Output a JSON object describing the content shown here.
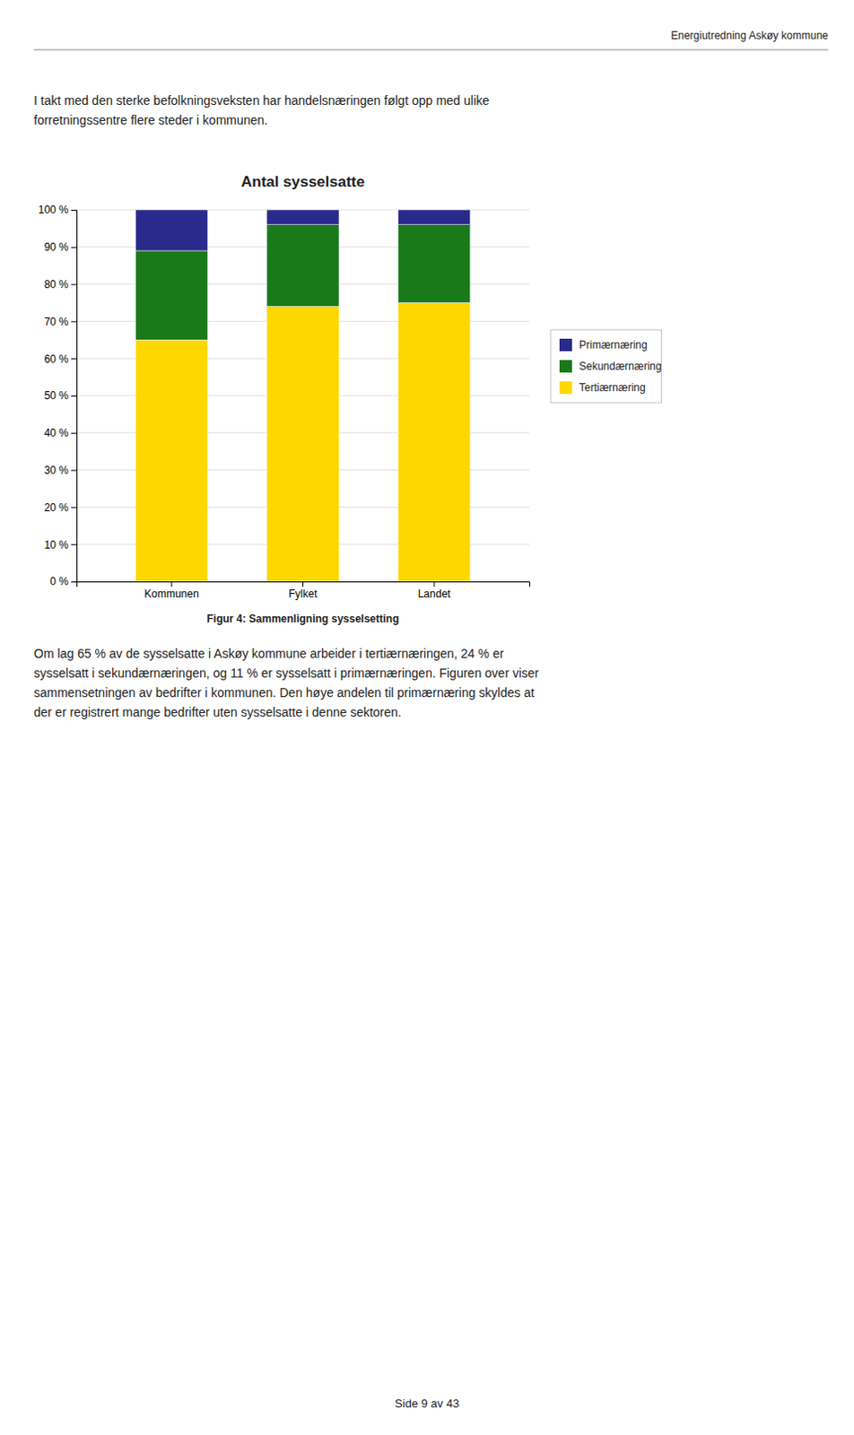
{
  "header": "Energiutredning Askøy kommune",
  "intro_text": "I takt med den sterke befolkningsveksten har handelsnæringen følgt opp med ulike\nforretningssentre flere steder i kommunen.",
  "chart_data": {
    "type": "bar",
    "title": "Antal sysselsatte",
    "categories": [
      "Kommunen",
      "Fylket",
      "Landet"
    ],
    "series": [
      {
        "name": "Tertiærnæring",
        "color": "#FFD700",
        "values": [
          65,
          74,
          75
        ]
      },
      {
        "name": "Sekundærnæring",
        "color": "#1a7a1a",
        "values": [
          24,
          22,
          21
        ]
      },
      {
        "name": "Primærnæring",
        "color": "#2a2a8c",
        "values": [
          11,
          4,
          4
        ]
      }
    ],
    "stacked": true,
    "ylim": [
      0,
      100
    ],
    "yticks": [
      {
        "value": 0,
        "label": "0 %"
      },
      {
        "value": 10,
        "label": "10 %"
      },
      {
        "value": 20,
        "label": "20 %"
      },
      {
        "value": 30,
        "label": "30 %"
      },
      {
        "value": 40,
        "label": "40 %"
      },
      {
        "value": 50,
        "label": "50 %"
      },
      {
        "value": 60,
        "label": "60 %"
      },
      {
        "value": 70,
        "label": "70 %"
      },
      {
        "value": 80,
        "label": "80 %"
      },
      {
        "value": 90,
        "label": "90 %"
      },
      {
        "value": 100,
        "label": "100 %"
      }
    ],
    "grid": true,
    "legend": "right"
  },
  "caption": "Figur 4: Sammenligning sysselsetting",
  "body_text": "Om lag 65 % av de sysselsatte i Askøy kommune arbeider i tertiærnæringen, 24 % er\nsysselsatt i sekundærnæringen, og 11 % er sysselsatt i primærnæringen. Figuren over viser\nsammensetningen av bedrifter i kommunen. Den høye andelen til primærnæring skyldes at\nder er registrert mange bedrifter uten sysselsatte i denne sektoren.",
  "footer": "Side 9 av 43"
}
